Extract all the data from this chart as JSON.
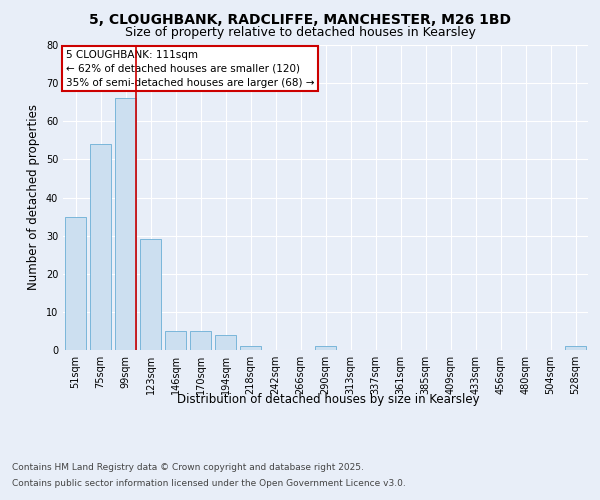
{
  "title_line1": "5, CLOUGHBANK, RADCLIFFE, MANCHESTER, M26 1BD",
  "title_line2": "Size of property relative to detached houses in Kearsley",
  "xlabel": "Distribution of detached houses by size in Kearsley",
  "ylabel": "Number of detached properties",
  "categories": [
    "51sqm",
    "75sqm",
    "99sqm",
    "123sqm",
    "146sqm",
    "170sqm",
    "194sqm",
    "218sqm",
    "242sqm",
    "266sqm",
    "290sqm",
    "313sqm",
    "337sqm",
    "361sqm",
    "385sqm",
    "409sqm",
    "433sqm",
    "456sqm",
    "480sqm",
    "504sqm",
    "528sqm"
  ],
  "values": [
    35,
    54,
    66,
    29,
    5,
    5,
    4,
    1,
    0,
    0,
    1,
    0,
    0,
    0,
    0,
    0,
    0,
    0,
    0,
    0,
    1
  ],
  "bar_color": "#ccdff0",
  "bar_edge_color": "#6aaed6",
  "highlight_bar_index": 2,
  "highlight_color": "#cc0000",
  "ylim": [
    0,
    80
  ],
  "yticks": [
    0,
    10,
    20,
    30,
    40,
    50,
    60,
    70,
    80
  ],
  "annotation_text": "5 CLOUGHBANK: 111sqm\n← 62% of detached houses are smaller (120)\n35% of semi-detached houses are larger (68) →",
  "annotation_box_color": "#ffffff",
  "annotation_box_edge": "#cc0000",
  "footer_line1": "Contains HM Land Registry data © Crown copyright and database right 2025.",
  "footer_line2": "Contains public sector information licensed under the Open Government Licence v3.0.",
  "background_color": "#e8eef8",
  "grid_color": "#ffffff",
  "title_fontsize": 10,
  "subtitle_fontsize": 9,
  "tick_fontsize": 7,
  "label_fontsize": 8.5,
  "footer_fontsize": 6.5,
  "annotation_fontsize": 7.5
}
